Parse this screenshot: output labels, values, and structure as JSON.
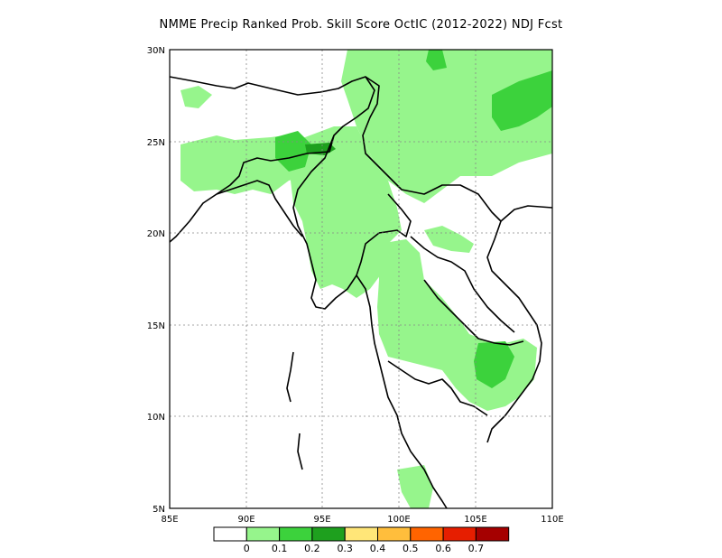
{
  "title": "NMME Precip Ranked Prob. Skill Score OctIC (2012-2022) NDJ Fcst",
  "axes": {
    "lon_ticks": [
      "85E",
      "90E",
      "95E",
      "100E",
      "105E",
      "110E"
    ],
    "lat_ticks": [
      "30N",
      "25N",
      "20N",
      "15N",
      "10N",
      "5N"
    ]
  },
  "colorbar": {
    "labels": [
      "0",
      "0.1",
      "0.2",
      "0.3",
      "0.4",
      "0.5",
      "0.6",
      "0.7"
    ],
    "colors": [
      "#ffffff",
      "#96f58c",
      "#3cd23c",
      "#1ea01e",
      "#ffe678",
      "#ffbe3c",
      "#ff6400",
      "#e61e00",
      "#a50000"
    ]
  },
  "field_colors": {
    "low": "#96f58c",
    "mid": "#3cd23c",
    "high": "#1ea01e"
  }
}
